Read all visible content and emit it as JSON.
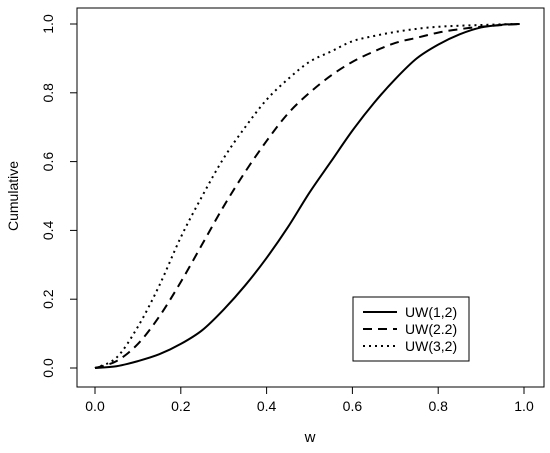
{
  "chart_data": {
    "type": "line",
    "title": "",
    "xlabel": "w",
    "ylabel": "Cumulative",
    "xlim": [
      0.0,
      1.0
    ],
    "ylim": [
      0.0,
      1.0
    ],
    "xticks": [
      0.0,
      0.2,
      0.4,
      0.6,
      0.8,
      1.0
    ],
    "xtick_labels": [
      "0.0",
      "0.2",
      "0.4",
      "0.6",
      "0.8",
      "1.0"
    ],
    "yticks": [
      0.0,
      0.2,
      0.4,
      0.6,
      0.8,
      1.0
    ],
    "ytick_labels": [
      "0.0",
      "0.2",
      "0.4",
      "0.6",
      "0.8",
      "1.0"
    ],
    "grid": false,
    "legend_position": "bottom-right",
    "x": [
      0.0,
      0.05,
      0.1,
      0.15,
      0.2,
      0.25,
      0.3,
      0.35,
      0.4,
      0.45,
      0.5,
      0.55,
      0.6,
      0.65,
      0.7,
      0.75,
      0.8,
      0.85,
      0.9,
      0.95,
      0.99
    ],
    "series": [
      {
        "name": "UW(1,2)",
        "line_style": "solid",
        "values": [
          0.0,
          0.005,
          0.02,
          0.04,
          0.07,
          0.11,
          0.17,
          0.24,
          0.32,
          0.41,
          0.51,
          0.6,
          0.69,
          0.77,
          0.84,
          0.9,
          0.94,
          0.97,
          0.99,
          0.998,
          1.0
        ]
      },
      {
        "name": "UW(2.2)",
        "line_style": "dashed",
        "values": [
          0.0,
          0.02,
          0.07,
          0.15,
          0.25,
          0.36,
          0.47,
          0.57,
          0.66,
          0.74,
          0.8,
          0.85,
          0.89,
          0.92,
          0.945,
          0.96,
          0.975,
          0.985,
          0.992,
          0.997,
          1.0
        ]
      },
      {
        "name": "UW(3,2)",
        "line_style": "dotted",
        "values": [
          0.0,
          0.03,
          0.12,
          0.24,
          0.38,
          0.5,
          0.61,
          0.7,
          0.78,
          0.84,
          0.89,
          0.92,
          0.95,
          0.965,
          0.977,
          0.986,
          0.992,
          0.995,
          0.997,
          0.999,
          1.0
        ]
      }
    ]
  }
}
